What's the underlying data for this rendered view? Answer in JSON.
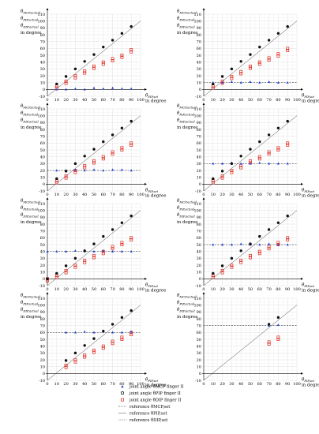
{
  "figure": {
    "y_labels": [
      "θMCP,actual",
      "θPIP,actual",
      "θDIP,actual",
      "in degree"
    ],
    "x_labels": [
      "θPIP,set",
      "in degree"
    ],
    "axis": {
      "xlim": [
        0,
        100
      ],
      "ylim": [
        -10,
        110
      ],
      "xticks": [
        0,
        10,
        20,
        30,
        40,
        50,
        60,
        70,
        80,
        90,
        100
      ],
      "yticks": [
        -10,
        0,
        10,
        20,
        30,
        40,
        50,
        60,
        70,
        80,
        90,
        100,
        110
      ],
      "grid": true
    },
    "legend": {
      "items": [
        {
          "key": "mcp",
          "label": "joint angle θMCP finger II",
          "marker": "triangle",
          "color": "#1f3fd6"
        },
        {
          "key": "pip",
          "label": "joint angle θPIP finger II",
          "marker": "circle",
          "color": "#000000"
        },
        {
          "key": "dip",
          "label": "joint angle θDIP finger II",
          "marker": "square",
          "color": "#e0281e"
        },
        {
          "key": "ref_mcp",
          "label": "reference θMCP,set",
          "style": "dashed"
        },
        {
          "key": "ref_pip",
          "label": "reference θPIP,set",
          "style": "solid-thin"
        },
        {
          "key": "ref_dip",
          "label": "reference θDIP,set",
          "style": "dotted"
        }
      ]
    }
  },
  "chart_data": [
    {
      "type": "scatter",
      "panel": 1,
      "mcp_ref": 0,
      "x": [
        10,
        20,
        30,
        40,
        50,
        60,
        70,
        80,
        90
      ],
      "mcp": [
        0,
        0,
        1,
        0,
        2,
        1,
        2,
        1,
        1
      ],
      "pip": [
        8,
        19,
        30,
        41,
        51,
        62,
        72,
        82,
        92
      ],
      "dip": [
        5,
        12,
        20,
        27,
        34,
        40,
        45,
        50,
        58
      ]
    },
    {
      "type": "scatter",
      "panel": 2,
      "mcp_ref": 10,
      "x": [
        10,
        20,
        30,
        40,
        50,
        60,
        70,
        80,
        90
      ],
      "mcp": [
        10,
        10,
        11,
        10,
        11,
        10,
        11,
        10,
        10
      ],
      "pip": [
        8,
        19,
        30,
        41,
        51,
        62,
        72,
        82,
        92
      ],
      "dip": [
        5,
        12,
        19,
        26,
        34,
        40,
        46,
        52,
        60
      ]
    },
    {
      "type": "scatter",
      "panel": 3,
      "mcp_ref": 20,
      "x": [
        10,
        20,
        30,
        40,
        50,
        60,
        70,
        80,
        90
      ],
      "mcp": [
        20,
        20,
        21,
        20,
        21,
        20,
        21,
        21,
        20
      ],
      "pip": [
        8,
        19,
        30,
        41,
        51,
        62,
        72,
        82,
        92
      ],
      "dip": [
        5,
        12,
        20,
        27,
        34,
        40,
        47,
        53,
        60
      ]
    },
    {
      "type": "scatter",
      "panel": 4,
      "mcp_ref": 30,
      "x": [
        10,
        20,
        30,
        40,
        50,
        60,
        70,
        80,
        90
      ],
      "mcp": [
        30,
        30,
        31,
        30,
        30,
        31,
        30,
        30,
        30
      ],
      "pip": [
        8,
        19,
        30,
        41,
        51,
        62,
        72,
        82,
        92
      ],
      "dip": [
        5,
        12,
        20,
        27,
        34,
        40,
        47,
        53,
        60
      ]
    },
    {
      "type": "scatter",
      "panel": 5,
      "mcp_ref": 40,
      "x": [
        0,
        10,
        20,
        30,
        40,
        50,
        60,
        70,
        80,
        90
      ],
      "mcp": [
        40,
        40,
        40,
        41,
        40,
        40,
        41,
        40,
        40,
        40
      ],
      "pip": [
        0,
        8,
        19,
        30,
        41,
        51,
        62,
        72,
        82,
        92
      ],
      "dip": [
        0,
        5,
        12,
        20,
        27,
        34,
        40,
        47,
        53,
        60
      ]
    },
    {
      "type": "scatter",
      "panel": 6,
      "mcp_ref": 50,
      "x": [
        10,
        20,
        30,
        40,
        50,
        60,
        70,
        80,
        90
      ],
      "mcp": [
        50,
        50,
        50,
        51,
        50,
        50,
        51,
        50,
        50
      ],
      "pip": [
        8,
        19,
        30,
        41,
        51,
        62,
        72,
        82,
        92
      ],
      "dip": [
        5,
        12,
        20,
        27,
        34,
        40,
        47,
        53,
        60
      ]
    },
    {
      "type": "scatter",
      "panel": 7,
      "mcp_ref": 60,
      "x": [
        20,
        30,
        40,
        50,
        60,
        70,
        80,
        90
      ],
      "mcp": [
        60,
        60,
        61,
        60,
        61,
        60,
        60,
        61
      ],
      "pip": [
        19,
        30,
        41,
        51,
        62,
        72,
        82,
        92
      ],
      "dip": [
        12,
        20,
        27,
        34,
        40,
        47,
        53,
        60
      ]
    },
    {
      "type": "scatter",
      "panel": 8,
      "mcp_ref": 70,
      "x": [
        70,
        80
      ],
      "mcp": [
        70,
        71
      ],
      "pip": [
        72,
        82
      ],
      "dip": [
        46,
        53
      ]
    }
  ]
}
